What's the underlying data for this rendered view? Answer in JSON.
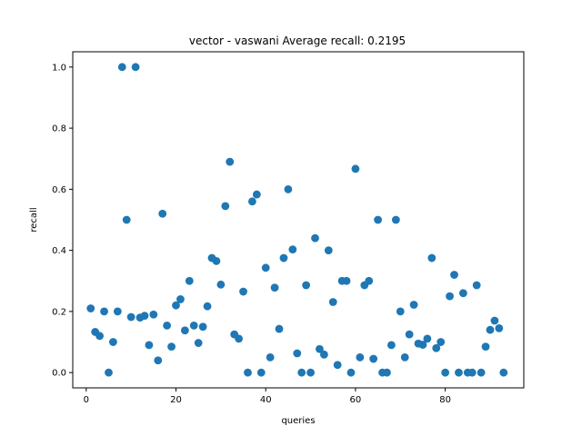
{
  "chart_data": {
    "type": "scatter",
    "title": "vector - vaswani  Average recall: 0.2195",
    "xlabel": "queries",
    "ylabel": "recall",
    "xlim": [
      -3,
      97.5
    ],
    "ylim": [
      -0.05,
      1.05
    ],
    "xticks": [
      0,
      20,
      40,
      60,
      80
    ],
    "yticks": [
      0.0,
      0.2,
      0.4,
      0.6,
      0.8,
      1.0
    ],
    "xtick_labels": [
      "0",
      "20",
      "40",
      "60",
      "80"
    ],
    "ytick_labels": [
      "0.0",
      "0.2",
      "0.4",
      "0.6",
      "0.8",
      "1.0"
    ],
    "grid": false,
    "marker_color": "#1f77b4",
    "series": [
      {
        "x": [
          1,
          2,
          3,
          4,
          5,
          6,
          7,
          8,
          9,
          10,
          11,
          12,
          13,
          14,
          15,
          16,
          17,
          18,
          19,
          20,
          21,
          22,
          23,
          24,
          25,
          26,
          27,
          28,
          29,
          30,
          31,
          32,
          33,
          34,
          35,
          36,
          37,
          38,
          39,
          40,
          41,
          42,
          43,
          44,
          45,
          46,
          47,
          48,
          49,
          50,
          51,
          52,
          53,
          54,
          55,
          56,
          57,
          58,
          59,
          60,
          61,
          62,
          63,
          64,
          65,
          66,
          67,
          68,
          69,
          70,
          71,
          72,
          73,
          74,
          75,
          76,
          77,
          78,
          79,
          80,
          81,
          82,
          83,
          84,
          85,
          86,
          87,
          88,
          89,
          90,
          91,
          92,
          93
        ],
        "y": [
          0.21,
          0.133,
          0.12,
          0.2,
          0.0,
          0.1,
          0.2,
          1.0,
          0.5,
          0.182,
          1.0,
          0.18,
          0.186,
          0.09,
          0.19,
          0.04,
          0.52,
          0.154,
          0.085,
          0.22,
          0.24,
          0.138,
          0.3,
          0.154,
          0.097,
          0.15,
          0.217,
          0.375,
          0.365,
          0.288,
          0.545,
          0.69,
          0.125,
          0.111,
          0.265,
          0.0,
          0.56,
          0.583,
          0.0,
          0.343,
          0.05,
          0.278,
          0.143,
          0.375,
          0.6,
          0.403,
          0.063,
          0.0,
          0.286,
          0.0,
          0.44,
          0.077,
          0.059,
          0.4,
          0.231,
          0.025,
          0.3,
          0.3,
          0.0,
          0.667,
          0.05,
          0.286,
          0.3,
          0.045,
          0.5,
          0.0,
          0.0,
          0.09,
          0.5,
          0.2,
          0.05,
          0.125,
          0.222,
          0.095,
          0.091,
          0.111,
          0.375,
          0.08,
          0.1,
          0.0,
          0.25,
          0.32,
          0.0,
          0.26,
          0.0,
          0.0,
          0.286,
          0.0,
          0.085,
          0.14,
          0.17,
          0.145,
          0.0
        ]
      }
    ]
  }
}
